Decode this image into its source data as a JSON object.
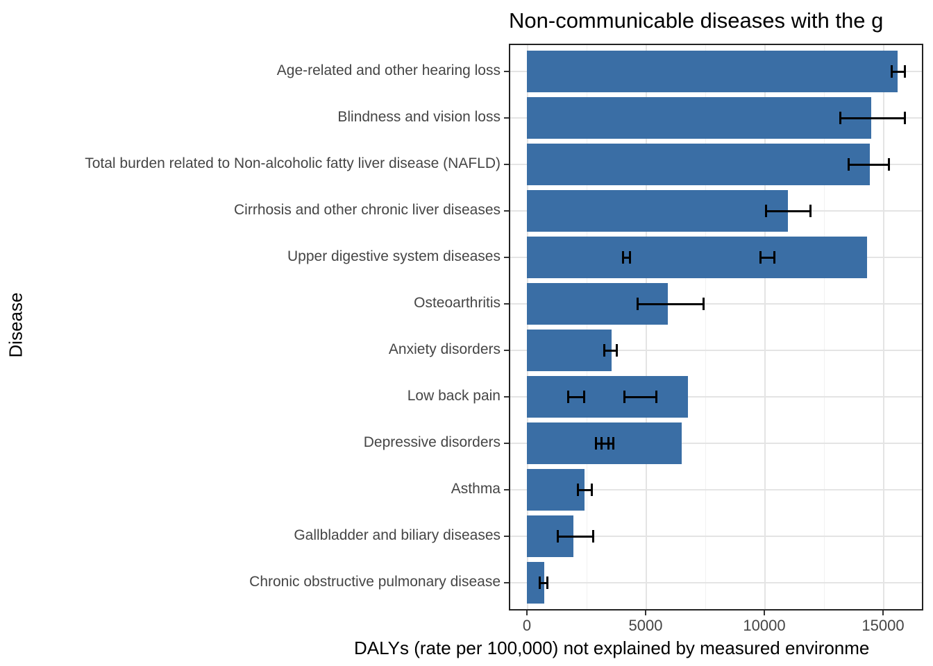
{
  "title": "Non-communicable diseases with the g",
  "chart_data": {
    "type": "bar",
    "orientation": "horizontal",
    "title": "Non-communicable diseases with the g",
    "xlabel": "DALYs (rate per 100,000) not explained by measured environme",
    "ylabel": "Disease",
    "categories": [
      "Age-related and other hearing loss",
      "Blindness and vision loss",
      "Total burden related to Non-alcoholic fatty liver disease (NAFLD)",
      "Cirrhosis and other chronic liver diseases",
      "Upper digestive system diseases",
      "Osteoarthritis",
      "Anxiety disorders",
      "Low back pain",
      "Depressive disorders",
      "Asthma",
      "Gallbladder and biliary diseases",
      "Chronic obstructive pulmonary disease"
    ],
    "values": [
      15600,
      14500,
      14450,
      11000,
      14330,
      5940,
      3570,
      6780,
      6520,
      2430,
      1960,
      730
    ],
    "error_bars": [
      [
        [
          15380,
          15910
        ]
      ],
      [
        [
          13190,
          15910
        ]
      ],
      [
        [
          13560,
          15240
        ]
      ],
      [
        [
          10060,
          11930
        ]
      ],
      [
        [
          4060,
          4330
        ],
        [
          9850,
          10410
        ]
      ],
      [
        [
          4660,
          7440
        ]
      ],
      [
        [
          3260,
          3780
        ]
      ],
      [
        [
          1730,
          2420
        ],
        [
          4120,
          5440
        ]
      ],
      [
        [
          2900,
          3450
        ],
        [
          3130,
          3630
        ]
      ],
      [
        [
          2150,
          2720
        ]
      ],
      [
        [
          1310,
          2790
        ]
      ],
      [
        [
          530,
          870
        ]
      ]
    ],
    "xlim": [
      0,
      16700
    ],
    "x_ticks": [
      0,
      5000,
      10000,
      15000
    ],
    "x_tick_labels": [
      "0",
      "5000",
      "10000",
      "15000"
    ],
    "x_minor_ticks": [
      2500,
      7500,
      12500
    ],
    "grid": true,
    "legend": "none",
    "bar_color": "#3A6EA5",
    "error_color": "#000000",
    "major_grid_color": "#E4E4E4",
    "minor_grid_color": "#F1F1F1",
    "axis_text_color": "#454545",
    "panel_border_color": "#222222"
  }
}
